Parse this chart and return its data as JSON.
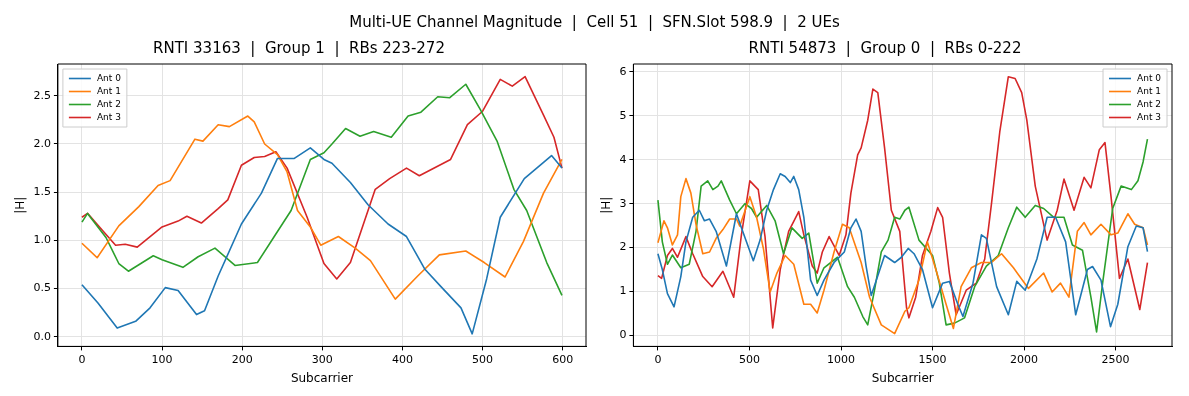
{
  "chart_data": [
    {
      "type": "line",
      "title": "RNTI 33163  |  Group 1  |  RBs 223-272",
      "xlabel": "Subcarrier",
      "ylabel": "|H|",
      "annotations": [
        "Multi-UE Channel Magnitude  |  Cell 51  |  SFN.Slot 598.9  |  2 UEs"
      ],
      "xlim": [
        -30,
        629
      ],
      "ylim": [
        -0.1,
        2.83
      ],
      "xticks": [
        0,
        100,
        200,
        300,
        400,
        500,
        600
      ],
      "yticks": [
        {
          "value": 0,
          "label": "0.0"
        },
        0.5,
        {
          "value": 1,
          "label": "1.0"
        },
        1.5,
        {
          "value": 2,
          "label": "2.0"
        },
        2.5
      ],
      "grid": true,
      "legend": "top left",
      "series": [
        {
          "name": "Ant 0",
          "color": "#1f77b4",
          "x": [
            0,
            20,
            44,
            67,
            85,
            104,
            120,
            143,
            153,
            170,
            199,
            224,
            244,
            265,
            285,
            302,
            312,
            335,
            357,
            382,
            405,
            428,
            448,
            473,
            487,
            505,
            522,
            552,
            586,
            599
          ],
          "values": [
            0.54,
            0.35,
            0.09,
            0.16,
            0.3,
            0.51,
            0.48,
            0.23,
            0.27,
            0.63,
            1.17,
            1.49,
            1.85,
            1.85,
            1.96,
            1.84,
            1.8,
            1.6,
            1.37,
            1.17,
            1.04,
            0.7,
            0.52,
            0.3,
            0.03,
            0.6,
            1.24,
            1.64,
            1.88,
            1.75
          ]
        },
        {
          "name": "Ant 1",
          "color": "#ff7f0e",
          "x": [
            0,
            19,
            46,
            71,
            95,
            110,
            141,
            151,
            170,
            184,
            207,
            215,
            228,
            244,
            256,
            269,
            285,
            298,
            320,
            341,
            360,
            391,
            419,
            446,
            479,
            502,
            528,
            551,
            576,
            599
          ],
          "values": [
            0.97,
            0.82,
            1.15,
            1.35,
            1.57,
            1.62,
            2.05,
            2.03,
            2.2,
            2.18,
            2.29,
            2.23,
            2.0,
            1.89,
            1.71,
            1.31,
            1.14,
            0.95,
            1.04,
            0.92,
            0.79,
            0.39,
            0.63,
            0.85,
            0.89,
            0.77,
            0.62,
            0.99,
            1.49,
            1.84
          ]
        },
        {
          "name": "Ant 2",
          "color": "#2ca02c",
          "x": [
            0,
            7,
            30,
            46,
            58,
            89,
            100,
            126,
            145,
            166,
            191,
            219,
            240,
            261,
            285,
            302,
            312,
            329,
            347,
            364,
            386,
            407,
            423,
            444,
            459,
            479,
            497,
            518,
            539,
            555,
            580,
            599
          ],
          "values": [
            1.19,
            1.28,
            1.03,
            0.76,
            0.68,
            0.84,
            0.8,
            0.72,
            0.83,
            0.92,
            0.74,
            0.77,
            1.04,
            1.31,
            1.84,
            1.91,
            2.0,
            2.16,
            2.08,
            2.13,
            2.07,
            2.29,
            2.33,
            2.49,
            2.48,
            2.62,
            2.36,
            2.03,
            1.53,
            1.31,
            0.77,
            0.43
          ]
        },
        {
          "name": "Ant 3",
          "color": "#d62728",
          "x": [
            0,
            7,
            26,
            42,
            54,
            69,
            100,
            120,
            131,
            149,
            170,
            182,
            199,
            215,
            228,
            242,
            256,
            281,
            302,
            318,
            335,
            366,
            384,
            405,
            421,
            460,
            481,
            500,
            522,
            537,
            553,
            576,
            589,
            599
          ],
          "values": [
            1.24,
            1.28,
            1.1,
            0.95,
            0.96,
            0.93,
            1.14,
            1.2,
            1.25,
            1.18,
            1.33,
            1.42,
            1.78,
            1.86,
            1.87,
            1.92,
            1.75,
            1.24,
            0.76,
            0.6,
            0.77,
            1.53,
            1.64,
            1.75,
            1.67,
            1.84,
            2.2,
            2.34,
            2.67,
            2.6,
            2.7,
            2.3,
            2.07,
            1.75
          ]
        }
      ]
    },
    {
      "type": "line",
      "title": "RNTI 54873  |  Group 0  |  RBs 0-222",
      "xlabel": "Subcarrier",
      "ylabel": "|H|",
      "xlim": [
        -134,
        2808
      ],
      "ylim": [
        -0.25,
        6.18
      ],
      "xticks": [
        0,
        500,
        1000,
        1500,
        2000,
        2500
      ],
      "yticks": [
        0,
        1,
        2,
        3,
        4,
        5,
        6
      ],
      "grid": true,
      "legend": "top right",
      "series": [
        {
          "name": "Ant 0",
          "color": "#1f77b4",
          "x": [
            0,
            24,
            52,
            88,
            125,
            153,
            190,
            226,
            254,
            282,
            318,
            374,
            429,
            456,
            521,
            558,
            594,
            631,
            668,
            695,
            723,
            742,
            769,
            797,
            834,
            870,
            907,
            962,
            1018,
            1054,
            1082,
            1110,
            1137,
            1165,
            1238,
            1293,
            1330,
            1367,
            1399,
            1445,
            1500,
            1555,
            1592,
            1638,
            1666,
            1721,
            1767,
            1794,
            1850,
            1914,
            1960,
            2006,
            2070,
            2126,
            2172,
            2227,
            2282,
            2346,
            2374,
            2420,
            2472,
            2512,
            2567,
            2613,
            2650,
            2674
          ],
          "values": [
            1.86,
            1.5,
            0.95,
            0.65,
            1.34,
            2.13,
            2.69,
            2.85,
            2.61,
            2.65,
            2.37,
            1.58,
            2.77,
            2.45,
            1.7,
            2.17,
            2.85,
            3.32,
            3.68,
            3.62,
            3.48,
            3.62,
            3.32,
            2.69,
            1.26,
            0.91,
            1.26,
            1.66,
            1.9,
            2.45,
            2.65,
            2.37,
            1.58,
            0.91,
            1.82,
            1.66,
            1.78,
            1.98,
            1.86,
            1.5,
            0.63,
            1.19,
            1.23,
            0.71,
            0.43,
            1.19,
            2.29,
            2.21,
            1.11,
            0.47,
            1.23,
            1.03,
            1.74,
            2.69,
            2.69,
            2.13,
            0.47,
            1.5,
            1.57,
            1.26,
            0.2,
            0.71,
            2.02,
            2.49,
            2.45,
            1.91
          ]
        },
        {
          "name": "Ant 1",
          "color": "#ff7f0e",
          "x": [
            0,
            33,
            52,
            79,
            107,
            125,
            153,
            180,
            208,
            245,
            282,
            318,
            355,
            392,
            429,
            447,
            502,
            539,
            576,
            613,
            650,
            695,
            742,
            797,
            834,
            870,
            907,
            962,
            1008,
            1045,
            1110,
            1156,
            1220,
            1293,
            1349,
            1371,
            1426,
            1472,
            1518,
            1574,
            1614,
            1656,
            1712,
            1767,
            1822,
            1877,
            1942,
            2024,
            2107,
            2153,
            2199,
            2245,
            2291,
            2328,
            2365,
            2420,
            2475,
            2512,
            2567,
            2604,
            2650,
            2674
          ],
          "values": [
            2.11,
            2.61,
            2.45,
            2.06,
            2.29,
            3.16,
            3.57,
            3.24,
            2.53,
            1.86,
            1.9,
            2.21,
            2.41,
            2.65,
            2.65,
            2.49,
            3.16,
            2.69,
            1.98,
            0.99,
            1.42,
            1.82,
            1.62,
            0.71,
            0.71,
            0.51,
            1.03,
            1.9,
            2.53,
            2.45,
            1.66,
            0.87,
            0.24,
            0.04,
            0.55,
            0.63,
            1.26,
            2.13,
            1.5,
            0.71,
            0.16,
            1.11,
            1.54,
            1.66,
            1.66,
            1.86,
            1.54,
            1.07,
            1.42,
            0.99,
            1.19,
            0.87,
            2.37,
            2.57,
            2.29,
            2.53,
            2.29,
            2.33,
            2.77,
            2.53,
            2.45,
            2.06
          ]
        },
        {
          "name": "Ant 2",
          "color": "#2ca02c",
          "x": [
            0,
            24,
            52,
            79,
            125,
            171,
            208,
            236,
            272,
            300,
            328,
            346,
            392,
            429,
            475,
            511,
            539,
            594,
            640,
            686,
            732,
            788,
            824,
            870,
            907,
            981,
            1036,
            1073,
            1119,
            1146,
            1183,
            1220,
            1257,
            1293,
            1321,
            1349,
            1371,
            1426,
            1500,
            1537,
            1574,
            1620,
            1675,
            1730,
            1794,
            1859,
            1914,
            1960,
            2006,
            2061,
            2107,
            2162,
            2218,
            2264,
            2319,
            2365,
            2396,
            2429,
            2484,
            2530,
            2586,
            2622,
            2650,
            2674
          ],
          "values": [
            3.08,
            2.13,
            1.62,
            1.83,
            1.54,
            1.62,
            2.37,
            3.4,
            3.52,
            3.32,
            3.4,
            3.52,
            3.08,
            2.77,
            3.0,
            2.89,
            2.69,
            2.96,
            2.61,
            1.86,
            2.45,
            2.21,
            2.33,
            1.19,
            1.54,
            1.78,
            1.11,
            0.87,
            0.43,
            0.24,
            1.03,
            1.9,
            2.17,
            2.69,
            2.65,
            2.85,
            2.92,
            2.17,
            1.82,
            1.19,
            0.24,
            0.28,
            0.4,
            1.11,
            1.58,
            1.82,
            2.45,
            2.92,
            2.69,
            2.96,
            2.89,
            2.69,
            2.69,
            2.06,
            1.94,
            0.87,
            0.08,
            1.19,
            2.89,
            3.4,
            3.32,
            3.52,
            3.95,
            4.47
          ]
        },
        {
          "name": "Ant 3",
          "color": "#d62728",
          "x": [
            0,
            20,
            52,
            79,
            107,
            153,
            190,
            245,
            296,
            355,
            414,
            456,
            502,
            548,
            585,
            627,
            668,
            714,
            769,
            797,
            843,
            870,
            898,
            935,
            990,
            1027,
            1054,
            1091,
            1110,
            1146,
            1174,
            1201,
            1238,
            1275,
            1321,
            1358,
            1371,
            1408,
            1445,
            1491,
            1528,
            1555,
            1592,
            1629,
            1684,
            1739,
            1785,
            1822,
            1868,
            1914,
            1951,
            1987,
            2015,
            2061,
            2126,
            2181,
            2218,
            2273,
            2328,
            2365,
            2411,
            2442,
            2475,
            2521,
            2567,
            2632,
            2674
          ],
          "values": [
            1.36,
            1.3,
            1.82,
            1.98,
            1.78,
            2.25,
            1.86,
            1.34,
            1.11,
            1.46,
            0.87,
            2.29,
            3.52,
            3.32,
            2.25,
            0.17,
            1.5,
            2.37,
            2.82,
            2.29,
            1.58,
            1.42,
            1.9,
            2.25,
            1.82,
            2.29,
            3.24,
            4.11,
            4.27,
            4.9,
            5.61,
            5.53,
            4.27,
            2.85,
            2.37,
            0.63,
            0.4,
            0.87,
            1.82,
            2.37,
            2.91,
            2.69,
            1.42,
            0.47,
            1.03,
            1.19,
            1.74,
            3.0,
            4.66,
            5.89,
            5.85,
            5.53,
            4.9,
            3.4,
            2.17,
            2.85,
            3.56,
            2.85,
            3.6,
            3.36,
            4.23,
            4.39,
            3.16,
            1.3,
            1.74,
            0.59,
            1.66
          ]
        }
      ]
    }
  ]
}
